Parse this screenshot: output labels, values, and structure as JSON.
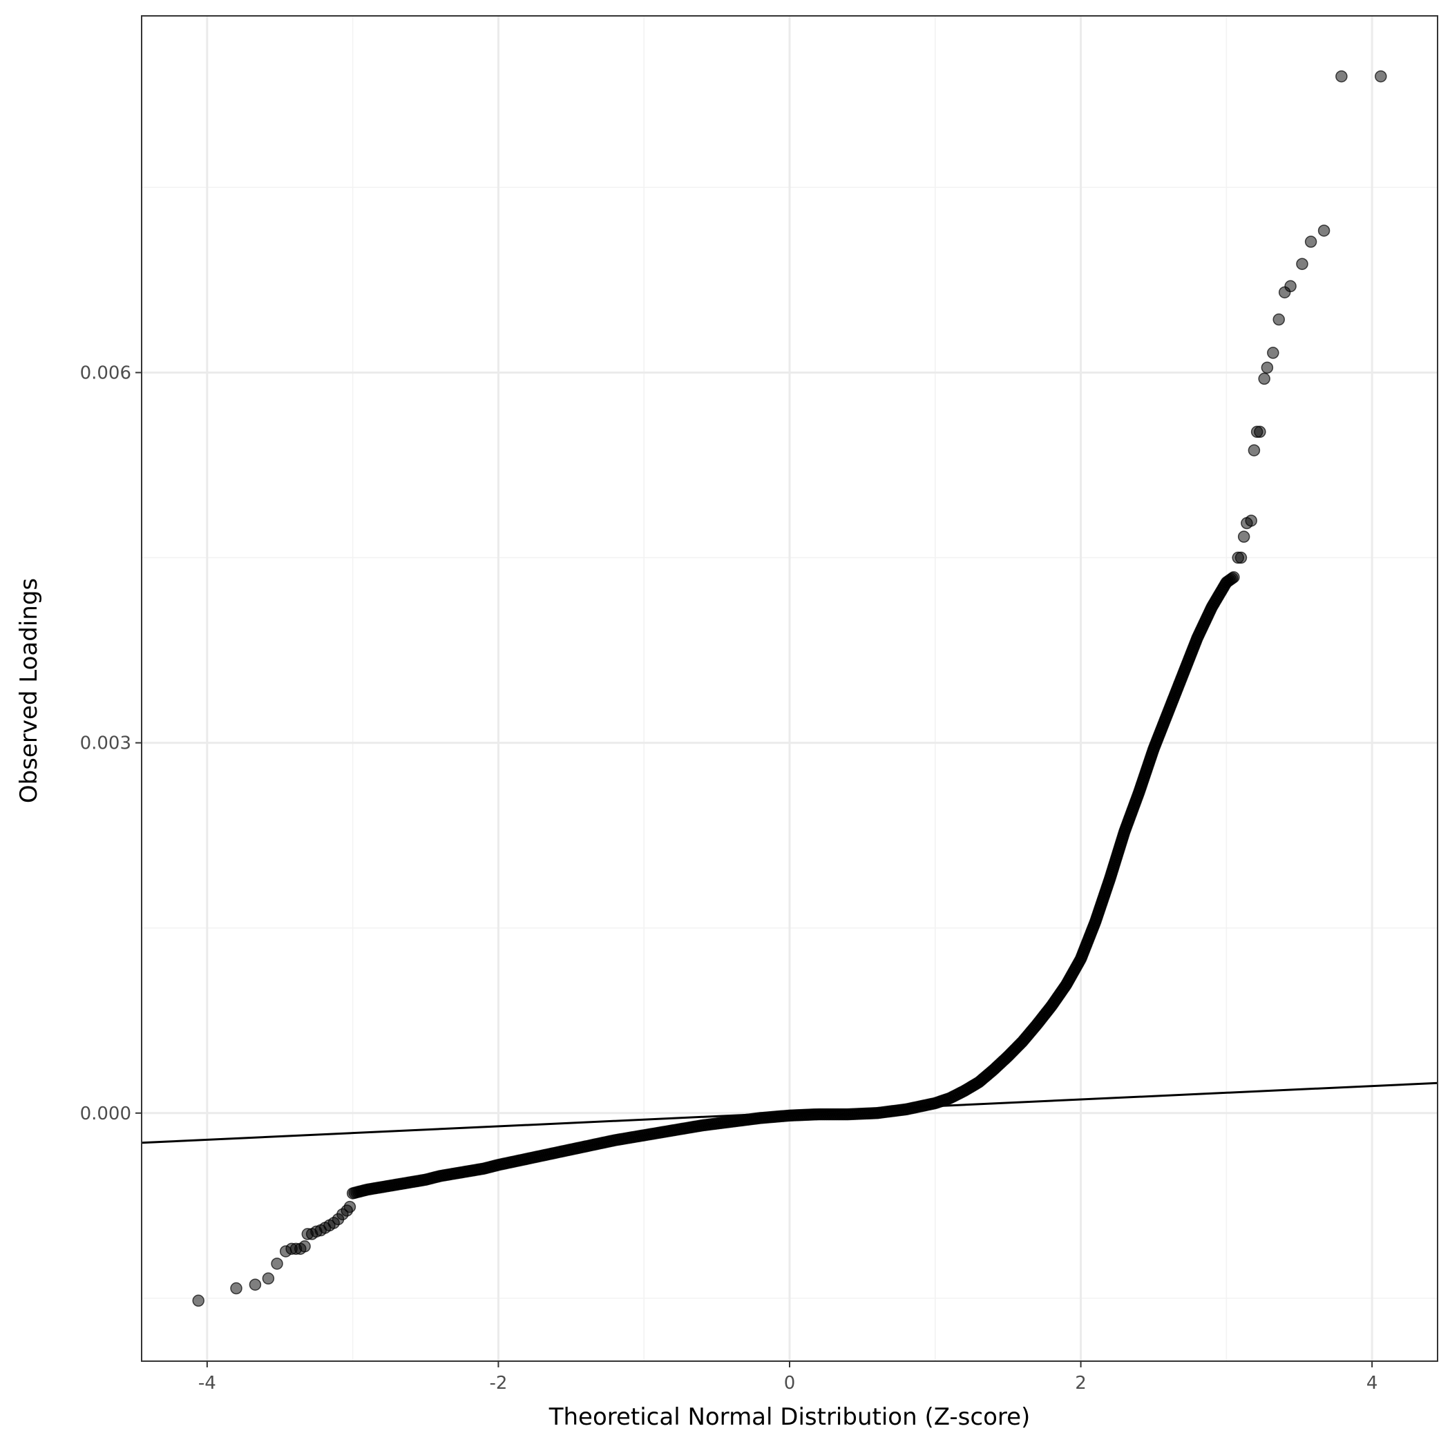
{
  "chart_data": {
    "type": "scatter",
    "title": "",
    "xlabel": "Theoretical Normal Distribution (Z-score)",
    "ylabel": "Observed Loadings",
    "xlim": [
      -4.45,
      4.45
    ],
    "ylim": [
      -0.00201,
      0.00889
    ],
    "x_ticks": [
      -4,
      -2,
      0,
      2,
      4
    ],
    "x_tick_labels": [
      "-4",
      "-2",
      "0",
      "2",
      "4"
    ],
    "y_ticks": [
      0.0,
      0.003,
      0.006
    ],
    "y_tick_labels": [
      "0.000",
      "0.003",
      "0.006"
    ],
    "grid": true,
    "legend": "none",
    "colors": {
      "points": "#000000",
      "point_opacity": 0.5,
      "line": "#000000",
      "grid_major": "#ebebeb",
      "grid_minor": "#f2f2f2",
      "panel_border": "#333333",
      "background": "#ffffff"
    },
    "reference_line": {
      "slope": 5.44e-05,
      "intercept": 1.6e-06
    },
    "quantile_curve": [
      [
        -3.0,
        -0.00065
      ],
      [
        -2.9,
        -0.00062
      ],
      [
        -2.8,
        -0.0006
      ],
      [
        -2.7,
        -0.00058
      ],
      [
        -2.6,
        -0.00056
      ],
      [
        -2.5,
        -0.00054
      ],
      [
        -2.4,
        -0.00051
      ],
      [
        -2.3,
        -0.00049
      ],
      [
        -2.2,
        -0.00047
      ],
      [
        -2.1,
        -0.00045
      ],
      [
        -2.0,
        -0.00042
      ],
      [
        -1.8,
        -0.00037
      ],
      [
        -1.6,
        -0.00032
      ],
      [
        -1.4,
        -0.00027
      ],
      [
        -1.2,
        -0.00022
      ],
      [
        -1.0,
        -0.00018
      ],
      [
        -0.8,
        -0.00014
      ],
      [
        -0.6,
        -0.0001
      ],
      [
        -0.4,
        -7e-05
      ],
      [
        -0.2,
        -4e-05
      ],
      [
        0.0,
        -2e-05
      ],
      [
        0.2,
        -1e-05
      ],
      [
        0.4,
        -1e-05
      ],
      [
        0.6,
        0.0
      ],
      [
        0.8,
        3e-05
      ],
      [
        1.0,
        8e-05
      ],
      [
        1.1,
        0.00012
      ],
      [
        1.2,
        0.00018
      ],
      [
        1.3,
        0.00025
      ],
      [
        1.4,
        0.00035
      ],
      [
        1.5,
        0.00046
      ],
      [
        1.6,
        0.00058
      ],
      [
        1.7,
        0.00072
      ],
      [
        1.8,
        0.00087
      ],
      [
        1.9,
        0.00104
      ],
      [
        2.0,
        0.00125
      ],
      [
        2.1,
        0.00155
      ],
      [
        2.2,
        0.0019
      ],
      [
        2.3,
        0.00228
      ],
      [
        2.4,
        0.0026
      ],
      [
        2.5,
        0.00295
      ],
      [
        2.6,
        0.00325
      ],
      [
        2.7,
        0.00355
      ],
      [
        2.8,
        0.00385
      ],
      [
        2.9,
        0.0041
      ],
      [
        3.0,
        0.0043
      ],
      [
        3.06,
        0.00435
      ]
    ],
    "tail_points": [
      [
        -4.06,
        -0.00152
      ],
      [
        -3.8,
        -0.00142
      ],
      [
        -3.67,
        -0.00139
      ],
      [
        -3.58,
        -0.00134
      ],
      [
        -3.52,
        -0.00122
      ],
      [
        -3.46,
        -0.00112
      ],
      [
        -3.42,
        -0.0011
      ],
      [
        -3.39,
        -0.0011
      ],
      [
        -3.36,
        -0.0011
      ],
      [
        -3.33,
        -0.00108
      ],
      [
        -3.31,
        -0.00098
      ],
      [
        -3.28,
        -0.00098
      ],
      [
        -3.25,
        -0.00096
      ],
      [
        -3.22,
        -0.00095
      ],
      [
        -3.19,
        -0.00093
      ],
      [
        -3.16,
        -0.00091
      ],
      [
        -3.13,
        -0.00089
      ],
      [
        -3.1,
        -0.00086
      ],
      [
        -3.07,
        -0.00082
      ],
      [
        -3.04,
        -0.00079
      ],
      [
        -3.02,
        -0.00076
      ],
      [
        3.08,
        0.0045
      ],
      [
        3.1,
        0.0045
      ],
      [
        3.12,
        0.00467
      ],
      [
        3.14,
        0.00478
      ],
      [
        3.17,
        0.0048
      ],
      [
        3.19,
        0.00537
      ],
      [
        3.21,
        0.00552
      ],
      [
        3.23,
        0.00552
      ],
      [
        3.26,
        0.00595
      ],
      [
        3.28,
        0.00604
      ],
      [
        3.32,
        0.00616
      ],
      [
        3.36,
        0.00643
      ],
      [
        3.4,
        0.00665
      ],
      [
        3.44,
        0.0067
      ],
      [
        3.52,
        0.00688
      ],
      [
        3.58,
        0.00706
      ],
      [
        3.67,
        0.00715
      ],
      [
        3.79,
        0.0084
      ],
      [
        4.06,
        0.0084
      ]
    ]
  }
}
